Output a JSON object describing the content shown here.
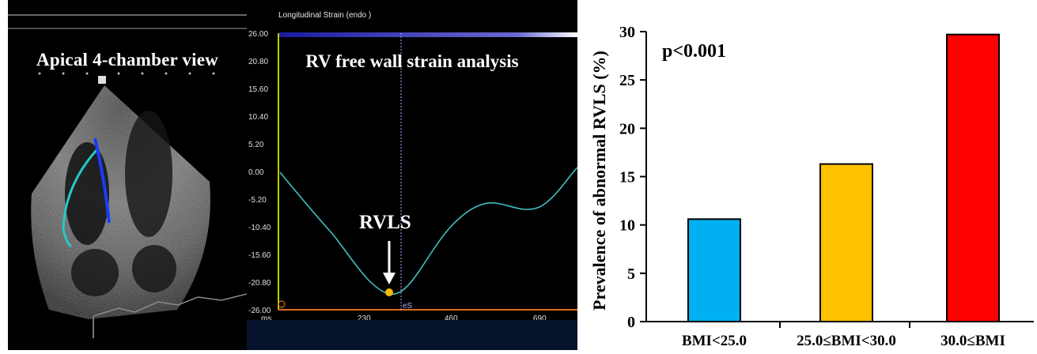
{
  "echo": {
    "label": "Apical 4-chamber view"
  },
  "strain": {
    "header": "Longitudinal Strain (endo )",
    "title": "RV free wall strain analysis",
    "annotation": "RVLS",
    "marker_label": "eS",
    "yticks": [
      "26.00",
      "20.80",
      "15.60",
      "10.40",
      "5.20",
      "0.00",
      "-5.20",
      "-10.40",
      "-15.60",
      "-20.80",
      "-26.00"
    ],
    "xticks": [
      "ms.",
      "230",
      "460",
      "690"
    ],
    "curve_color": "#3fbfbf",
    "peak_color": "#f5b800"
  },
  "chart_data": {
    "type": "bar",
    "categories": [
      "BMI<25.0",
      "25.0≤BMI<30.0",
      "30.0≤BMI"
    ],
    "values": [
      10.6,
      16.3,
      29.7
    ],
    "colors": [
      "#00b0f0",
      "#ffc000",
      "#ff0000"
    ],
    "ylabel": "Prevalence of abnormal RVLS (%)",
    "ylim": [
      0,
      30
    ],
    "yticks": [
      0,
      5,
      10,
      15,
      20,
      25,
      30
    ],
    "annotation": "p<0.001",
    "grid": false
  }
}
